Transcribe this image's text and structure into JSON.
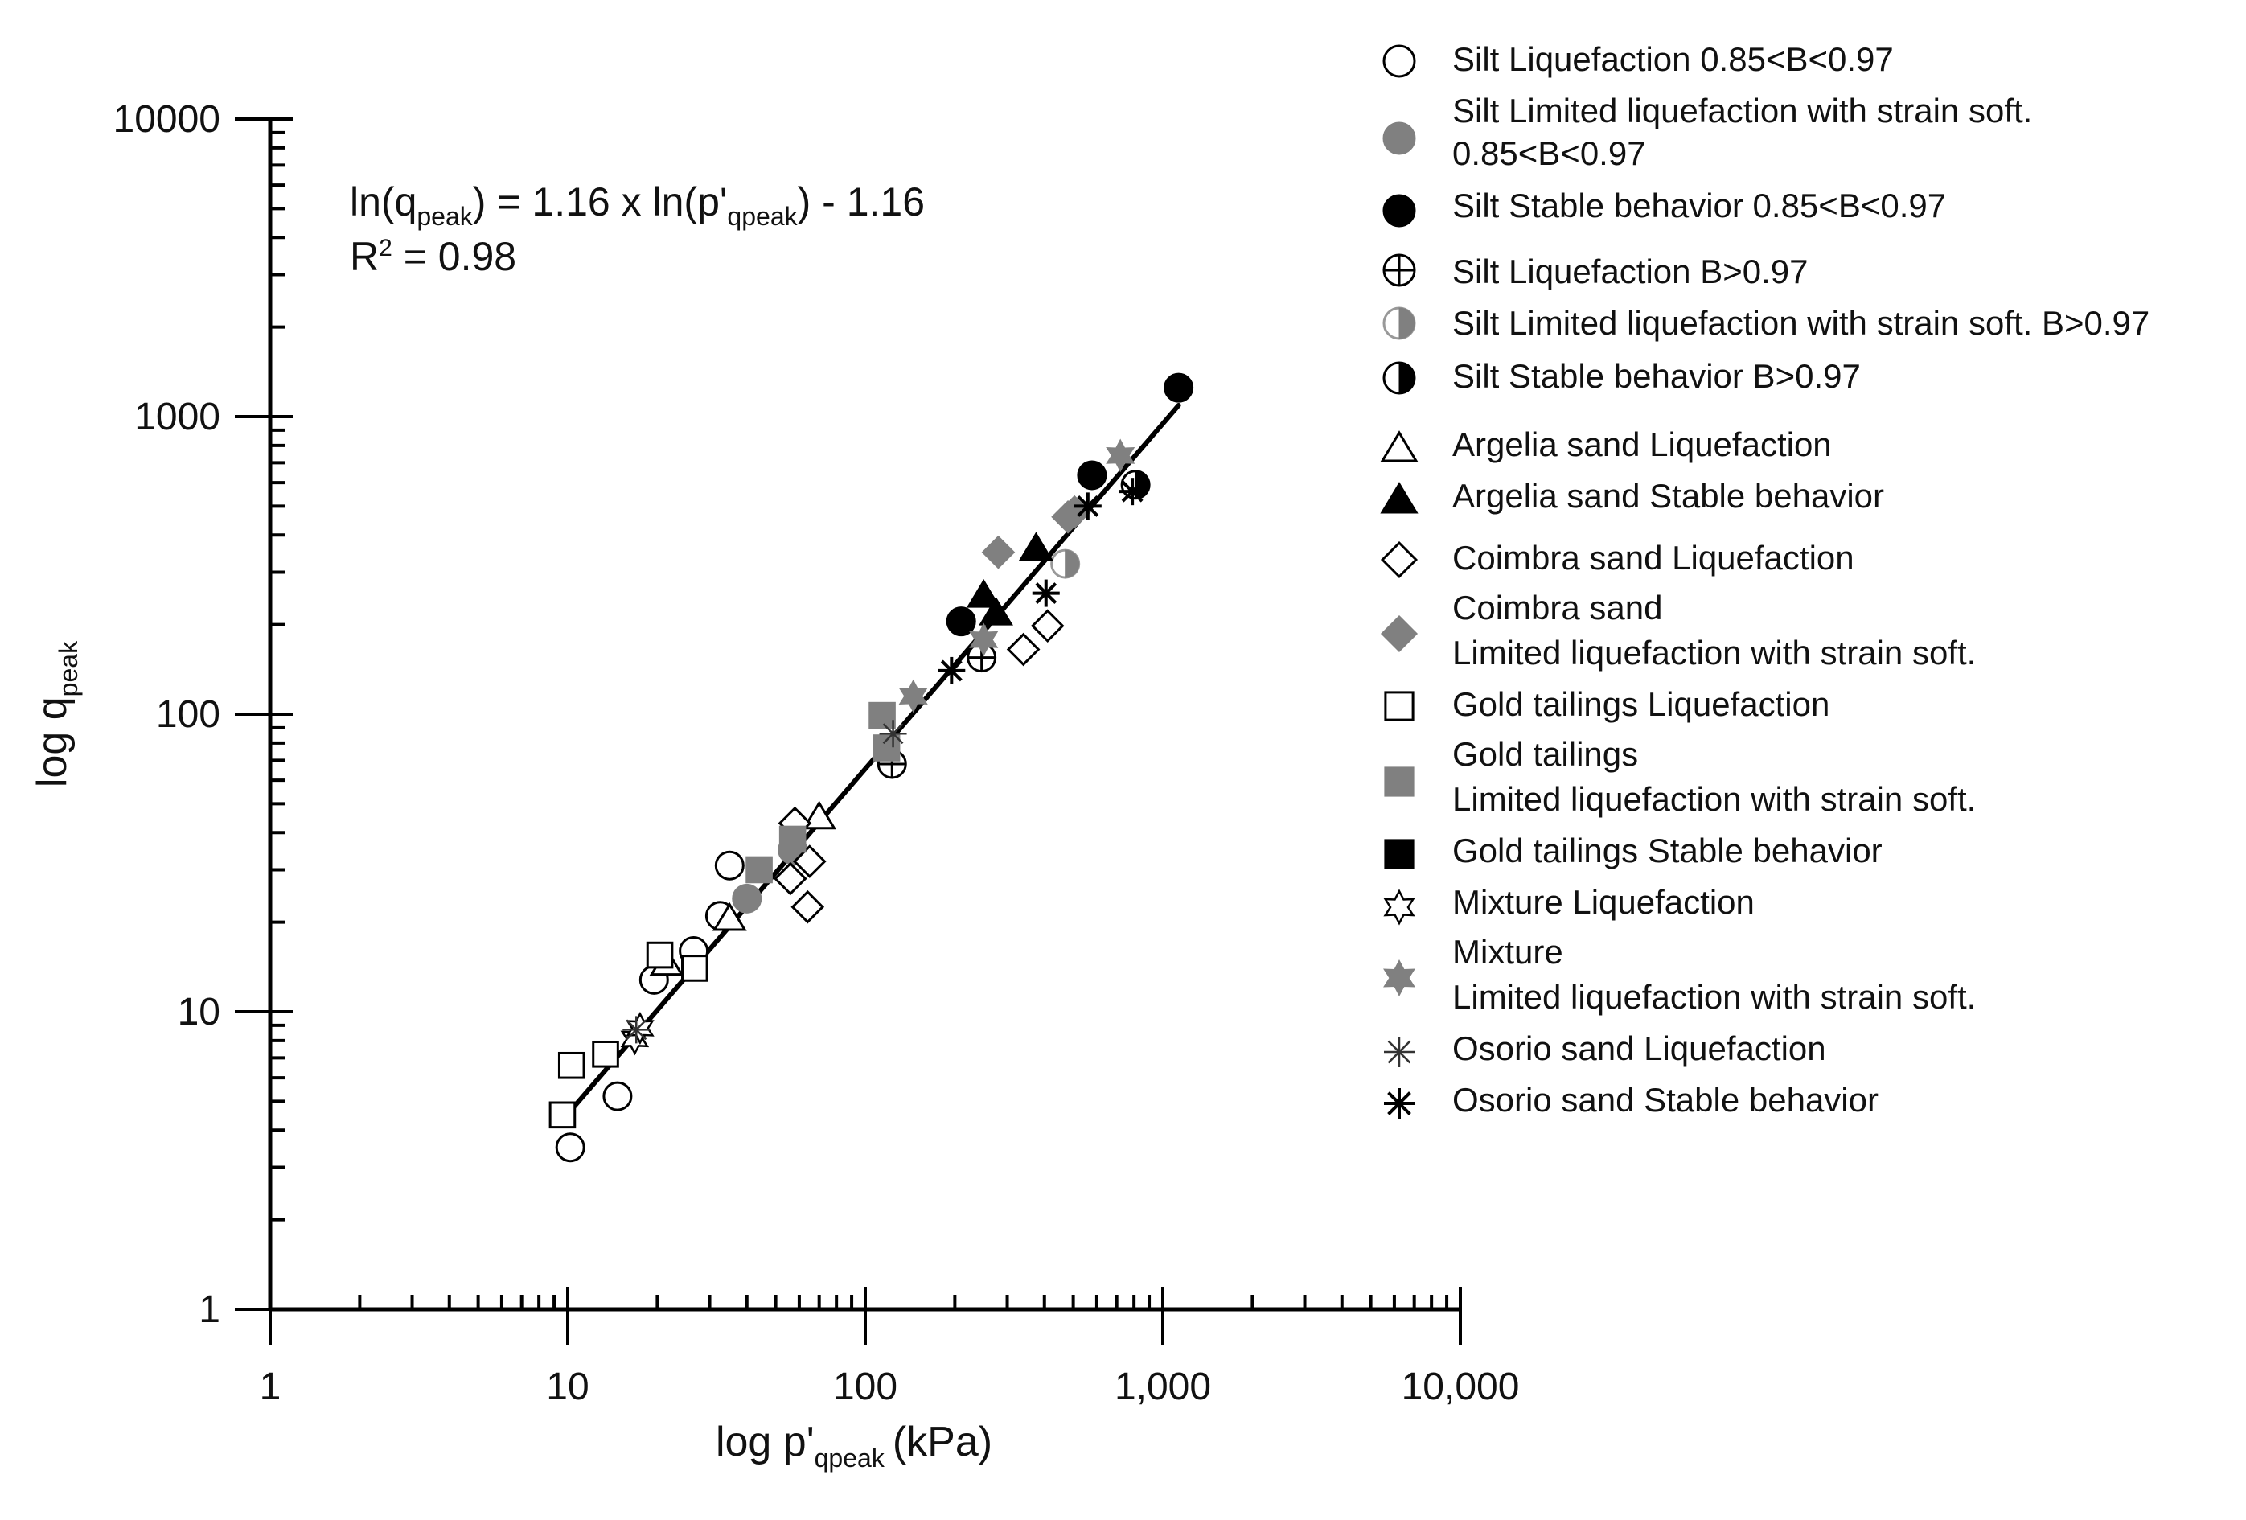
{
  "chart_data": {
    "type": "scatter",
    "title": "",
    "xlabel": "log p'",
    "xlabel_sub": "qpeak",
    "xlabel_unit": "(kPa)",
    "ylabel": "log q",
    "ylabel_sub": "peak",
    "xscale": "log",
    "yscale": "log",
    "xlim": [
      1,
      10000
    ],
    "ylim": [
      1,
      10000
    ],
    "x_ticks": [
      {
        "value": 1,
        "label": "1"
      },
      {
        "value": 10,
        "label": "10"
      },
      {
        "value": 100,
        "label": "100"
      },
      {
        "value": 1000,
        "label": "1,000"
      },
      {
        "value": 10000,
        "label": "10,000"
      }
    ],
    "y_ticks": [
      {
        "value": 1,
        "label": "1"
      },
      {
        "value": 10,
        "label": "10"
      },
      {
        "value": 100,
        "label": "100"
      },
      {
        "value": 1000,
        "label": "1000"
      },
      {
        "value": 10000,
        "label": "10000"
      }
    ],
    "equation": {
      "prefix": "ln(q",
      "sub1": "peak",
      "middle": ") = 1.16 x ln(p'",
      "sub2": "qpeak",
      "suffix": ") - 1.16"
    },
    "r2": {
      "label": "R",
      "sup": "2",
      "value": " = 0.98"
    },
    "fit_line": {
      "x_start": 9.5,
      "x_end": 1130,
      "slope": 1.16,
      "intercept": -1.16
    },
    "legend": [
      {
        "label": "Silt Liquefaction 0.85<B<0.97",
        "marker": "circle-open"
      },
      {
        "label": "Silt Limited liquefaction with strain soft.",
        "label2": "0.85<B<0.97",
        "marker": "circle-gray"
      },
      {
        "label": "Silt Stable behavior 0.85<B<0.97",
        "marker": "circle-black"
      },
      {
        "label": "Silt Liquefaction B>0.97",
        "marker": "circle-cross"
      },
      {
        "label": "Silt Limited liquefaction with strain soft. B>0.97",
        "marker": "circle-half-gray"
      },
      {
        "label": "Silt Stable behavior B>0.97",
        "marker": "circle-half-black"
      },
      {
        "label": "Argelia sand Liquefaction",
        "marker": "triangle-open"
      },
      {
        "label": "Argelia sand Stable behavior",
        "marker": "triangle-black"
      },
      {
        "label": "Coimbra sand Liquefaction",
        "marker": "diamond-open"
      },
      {
        "label": "Coimbra sand",
        "label2": "Limited liquefaction with strain soft.",
        "marker": "diamond-gray"
      },
      {
        "label": "Gold tailings Liquefaction",
        "marker": "square-open"
      },
      {
        "label": "Gold tailings",
        "label2": "Limited liquefaction with strain soft.",
        "marker": "square-gray"
      },
      {
        "label": "Gold tailings Stable behavior",
        "marker": "square-black"
      },
      {
        "label": "Mixture Liquefaction",
        "marker": "star6-open"
      },
      {
        "label": "Mixture",
        "label2": "Limited liquefaction with strain soft.",
        "marker": "star6-gray"
      },
      {
        "label": "Osorio sand Liquefaction",
        "marker": "asterisk-open"
      },
      {
        "label": "Osorio sand Stable behavior",
        "marker": "asterisk-black"
      }
    ],
    "series": [
      {
        "name": "Silt Liquefaction 0.85<B<0.97",
        "marker": "circle-open",
        "points": [
          [
            10.2,
            3.5
          ],
          [
            14.7,
            5.2
          ],
          [
            19.5,
            12.8
          ],
          [
            26.5,
            16
          ],
          [
            32.5,
            21
          ],
          [
            35,
            31
          ]
        ]
      },
      {
        "name": "Silt Limited liquefaction with strain soft. 0.85<B<0.97",
        "marker": "circle-gray",
        "points": [
          [
            40,
            24
          ],
          [
            57,
            35
          ]
        ]
      },
      {
        "name": "Silt Stable behavior 0.85<B<0.97",
        "marker": "circle-black",
        "points": [
          [
            210,
            205
          ],
          [
            578,
            635
          ],
          [
            1130,
            1250
          ]
        ]
      },
      {
        "name": "Silt Liquefaction B>0.97",
        "marker": "circle-cross",
        "points": [
          [
            123,
            68
          ],
          [
            246,
            155
          ]
        ]
      },
      {
        "name": "Silt Limited liquefaction with strain soft. B>0.97",
        "marker": "circle-half-gray",
        "points": [
          [
            470,
            320
          ]
        ]
      },
      {
        "name": "Silt Stable behavior B>0.97",
        "marker": "circle-half-black",
        "points": [
          [
            810,
            590
          ]
        ]
      },
      {
        "name": "Argelia sand Liquefaction",
        "marker": "triangle-open",
        "points": [
          [
            21.5,
            14.5
          ],
          [
            35,
            20.5
          ],
          [
            70,
            45
          ]
        ]
      },
      {
        "name": "Argelia sand Stable behavior",
        "marker": "triangle-black",
        "points": [
          [
            250,
            250
          ],
          [
            275,
            218
          ],
          [
            375,
            360
          ]
        ]
      },
      {
        "name": "Coimbra sand Liquefaction",
        "marker": "diamond-open",
        "points": [
          [
            56,
            28
          ],
          [
            58,
            43
          ],
          [
            64,
            22.5
          ],
          [
            65,
            32
          ],
          [
            340,
            165
          ],
          [
            410,
            198
          ]
        ]
      },
      {
        "name": "Coimbra sand Limited liquefaction with strain soft.",
        "marker": "diamond-gray",
        "points": [
          [
            280,
            350
          ],
          [
            480,
            460
          ],
          [
            505,
            478
          ]
        ]
      },
      {
        "name": "Gold tailings Liquefaction",
        "marker": "square-open",
        "points": [
          [
            9.6,
            4.5
          ],
          [
            10.3,
            6.6
          ],
          [
            13.4,
            7.2
          ],
          [
            20.4,
            15.5
          ],
          [
            26.7,
            14
          ]
        ]
      },
      {
        "name": "Gold tailings Limited liquefaction with strain soft.",
        "marker": "square-gray",
        "points": [
          [
            44,
            30
          ],
          [
            57,
            38
          ],
          [
            114,
            99
          ],
          [
            118,
            77
          ]
        ]
      },
      {
        "name": "Gold tailings Stable behavior",
        "marker": "square-black",
        "points": []
      },
      {
        "name": "Mixture Liquefaction",
        "marker": "star6-open",
        "points": [
          [
            16.8,
            8.1
          ],
          [
            17.5,
            8.8
          ]
        ]
      },
      {
        "name": "Mixture Limited liquefaction with strain soft.",
        "marker": "star6-gray",
        "points": [
          [
            145,
            115
          ],
          [
            250,
            178
          ],
          [
            720,
            740
          ]
        ]
      },
      {
        "name": "Osorio sand Liquefaction",
        "marker": "asterisk-open",
        "points": [
          [
            17,
            8.7
          ],
          [
            124,
            86
          ]
        ]
      },
      {
        "name": "Osorio sand Stable behavior",
        "marker": "asterisk-black",
        "points": [
          [
            195,
            140
          ],
          [
            405,
            255
          ],
          [
            560,
            500
          ],
          [
            790,
            560
          ]
        ]
      }
    ]
  }
}
